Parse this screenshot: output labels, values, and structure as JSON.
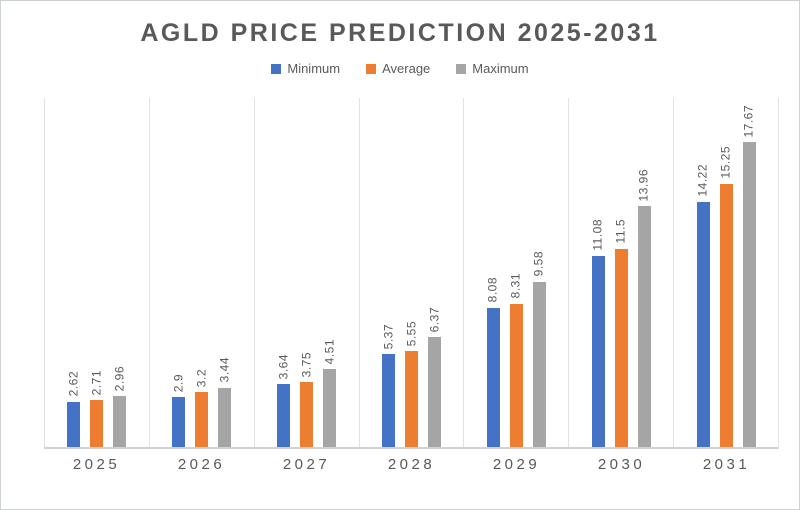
{
  "title": "AGLD PRICE PREDICTION 2025-2031",
  "colors": {
    "minimum": "#4472C4",
    "average": "#ED7D31",
    "maximum": "#A5A5A5",
    "text": "#595959",
    "gridline": "#e2e2e2",
    "axis": "#d2d2d2",
    "background": "#ffffff"
  },
  "chart_data": {
    "type": "bar",
    "title": "AGLD PRICE PREDICTION 2025-2031",
    "categories": [
      "2025",
      "2026",
      "2027",
      "2028",
      "2029",
      "2030",
      "2031"
    ],
    "series": [
      {
        "name": "Minimum",
        "color": "#4472C4",
        "values": [
          2.62,
          2.9,
          3.64,
          5.37,
          8.08,
          11.08,
          14.22
        ],
        "labels": [
          "2.62",
          "2.9",
          "3.64",
          "5.37",
          "8.08",
          "11.08",
          "14.22"
        ]
      },
      {
        "name": "Average",
        "color": "#ED7D31",
        "values": [
          2.71,
          3.2,
          3.75,
          5.55,
          8.31,
          11.5,
          15.25
        ],
        "labels": [
          "2.71",
          "3.2",
          "3.75",
          "5.55",
          "8.31",
          "11.5",
          "15.25"
        ]
      },
      {
        "name": "Maximum",
        "color": "#A5A5A5",
        "values": [
          2.96,
          3.44,
          4.51,
          6.37,
          9.58,
          13.96,
          17.67
        ],
        "labels": [
          "2.96",
          "3.44",
          "4.51",
          "6.37",
          "9.58",
          "13.96",
          "17.67"
        ]
      }
    ],
    "xlabel": "",
    "ylabel": "",
    "ylim": [
      0,
      20
    ],
    "grid": "vertical category separators only, no horizontal gridlines, no y-axis tick labels",
    "legend_position": "top",
    "value_label_rotation": "vertical, reading bottom-to-top"
  }
}
